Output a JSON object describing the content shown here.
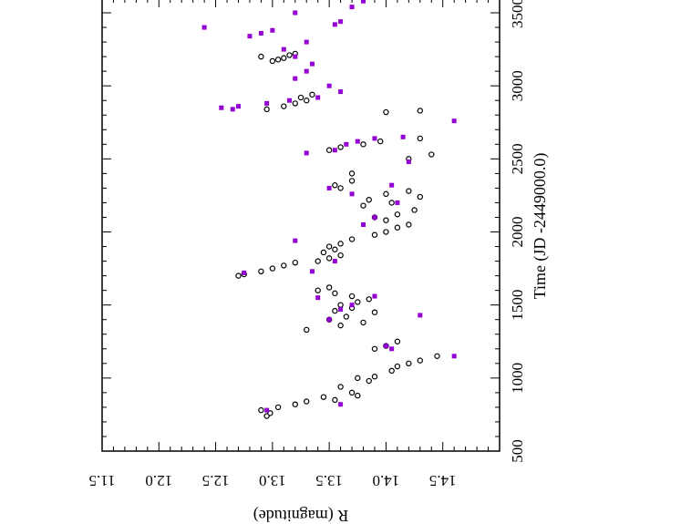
{
  "chart_data": {
    "type": "scatter",
    "orientation": "rotated-90",
    "title": "",
    "xlabel": "Time  (JD -2449000.0)",
    "ylabel": "R (magnitude)",
    "xlim": [
      500,
      3600
    ],
    "ylim": [
      11.5,
      15.0
    ],
    "x_ticks": [
      "500",
      "1000",
      "1500",
      "2000",
      "2500",
      "3000",
      "3500"
    ],
    "y_ticks": [
      "11.5",
      "12.0",
      "12.5",
      "13.0",
      "13.5",
      "14.0",
      "14.5"
    ],
    "grid": false,
    "legend": "none",
    "colors": {
      "open": "#000000",
      "filled": "#9400d3"
    },
    "series": [
      {
        "marker": "open-circle",
        "points": [
          [
            740,
            12.95
          ],
          [
            760,
            12.98
          ],
          [
            780,
            12.9
          ],
          [
            800,
            13.05
          ],
          [
            820,
            13.2
          ],
          [
            840,
            13.3
          ],
          [
            850,
            13.55
          ],
          [
            870,
            13.45
          ],
          [
            880,
            13.75
          ],
          [
            900,
            13.7
          ],
          [
            940,
            13.6
          ],
          [
            980,
            13.85
          ],
          [
            1000,
            13.75
          ],
          [
            1010,
            13.9
          ],
          [
            1050,
            14.05
          ],
          [
            1080,
            14.1
          ],
          [
            1100,
            14.2
          ],
          [
            1120,
            14.3
          ],
          [
            1150,
            14.45
          ],
          [
            1200,
            13.9
          ],
          [
            1220,
            14.0
          ],
          [
            1250,
            14.1
          ],
          [
            1330,
            13.3
          ],
          [
            1360,
            13.6
          ],
          [
            1380,
            13.8
          ],
          [
            1400,
            13.5
          ],
          [
            1420,
            13.65
          ],
          [
            1450,
            13.9
          ],
          [
            1460,
            13.55
          ],
          [
            1480,
            13.7
          ],
          [
            1500,
            13.6
          ],
          [
            1520,
            13.75
          ],
          [
            1540,
            13.85
          ],
          [
            1560,
            13.7
          ],
          [
            1580,
            13.55
          ],
          [
            1600,
            13.4
          ],
          [
            1620,
            13.5
          ],
          [
            1700,
            12.7
          ],
          [
            1710,
            12.75
          ],
          [
            1730,
            12.9
          ],
          [
            1750,
            13.0
          ],
          [
            1770,
            13.1
          ],
          [
            1790,
            13.2
          ],
          [
            1800,
            13.4
          ],
          [
            1820,
            13.5
          ],
          [
            1840,
            13.6
          ],
          [
            1860,
            13.45
          ],
          [
            1880,
            13.55
          ],
          [
            1900,
            13.5
          ],
          [
            1920,
            13.6
          ],
          [
            1950,
            13.7
          ],
          [
            1980,
            13.9
          ],
          [
            2000,
            14.0
          ],
          [
            2030,
            14.1
          ],
          [
            2050,
            14.2
          ],
          [
            2080,
            14.0
          ],
          [
            2100,
            13.9
          ],
          [
            2120,
            14.1
          ],
          [
            2150,
            14.25
          ],
          [
            2180,
            13.8
          ],
          [
            2200,
            14.05
          ],
          [
            2220,
            13.85
          ],
          [
            2240,
            14.3
          ],
          [
            2260,
            14.0
          ],
          [
            2280,
            14.2
          ],
          [
            2300,
            13.6
          ],
          [
            2320,
            13.55
          ],
          [
            2350,
            13.7
          ],
          [
            2400,
            13.7
          ],
          [
            2500,
            14.2
          ],
          [
            2530,
            14.4
          ],
          [
            2560,
            13.5
          ],
          [
            2580,
            13.6
          ],
          [
            2600,
            13.8
          ],
          [
            2620,
            13.95
          ],
          [
            2640,
            14.3
          ],
          [
            2820,
            14.0
          ],
          [
            2830,
            14.3
          ],
          [
            2840,
            12.95
          ],
          [
            2860,
            13.1
          ],
          [
            2880,
            13.2
          ],
          [
            2900,
            13.3
          ],
          [
            2920,
            13.25
          ],
          [
            2940,
            13.35
          ],
          [
            3170,
            13.0
          ],
          [
            3180,
            13.05
          ],
          [
            3190,
            13.1
          ],
          [
            3200,
            12.9
          ],
          [
            3210,
            13.15
          ],
          [
            3220,
            13.2
          ]
        ]
      },
      {
        "marker": "filled-square",
        "points": [
          [
            780,
            12.95
          ],
          [
            820,
            13.6
          ],
          [
            1150,
            14.6
          ],
          [
            1200,
            14.05
          ],
          [
            1220,
            14.0
          ],
          [
            1400,
            13.5
          ],
          [
            1430,
            14.3
          ],
          [
            1470,
            13.6
          ],
          [
            1500,
            13.7
          ],
          [
            1550,
            13.4
          ],
          [
            1560,
            13.9
          ],
          [
            1720,
            12.75
          ],
          [
            1730,
            13.35
          ],
          [
            1800,
            13.55
          ],
          [
            1940,
            13.2
          ],
          [
            2050,
            13.8
          ],
          [
            2100,
            13.9
          ],
          [
            2200,
            14.1
          ],
          [
            2260,
            13.7
          ],
          [
            2300,
            13.5
          ],
          [
            2320,
            14.05
          ],
          [
            2480,
            14.2
          ],
          [
            2540,
            13.3
          ],
          [
            2560,
            13.55
          ],
          [
            2600,
            13.65
          ],
          [
            2620,
            13.75
          ],
          [
            2640,
            13.9
          ],
          [
            2650,
            14.15
          ],
          [
            2760,
            14.6
          ],
          [
            2840,
            12.65
          ],
          [
            2850,
            12.55
          ],
          [
            2860,
            12.7
          ],
          [
            2880,
            12.95
          ],
          [
            2900,
            13.15
          ],
          [
            2920,
            13.4
          ],
          [
            2960,
            13.6
          ],
          [
            3000,
            13.5
          ],
          [
            3050,
            13.2
          ],
          [
            3100,
            13.3
          ],
          [
            3150,
            13.35
          ],
          [
            3200,
            13.2
          ],
          [
            3250,
            13.1
          ],
          [
            3300,
            13.3
          ],
          [
            3340,
            12.8
          ],
          [
            3360,
            12.9
          ],
          [
            3380,
            13.0
          ],
          [
            3400,
            12.4
          ],
          [
            3420,
            13.55
          ],
          [
            3440,
            13.6
          ],
          [
            3500,
            13.2
          ],
          [
            3540,
            13.7
          ],
          [
            3580,
            13.8
          ]
        ]
      }
    ]
  }
}
